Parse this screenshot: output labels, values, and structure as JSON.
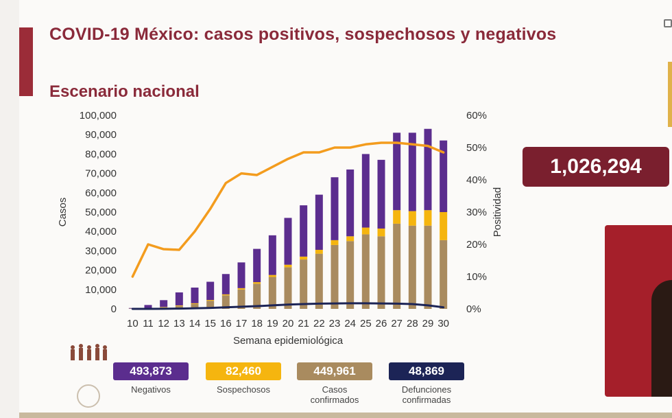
{
  "header": {
    "title": "COVID-19 México: casos positivos, sospechosos y negativos",
    "subtitle": "Escenario nacional"
  },
  "total_badge": "1,026,294",
  "stats": [
    {
      "value": "493,873",
      "label": "Negativos",
      "color": "#5b2d8e"
    },
    {
      "value": "82,460",
      "label": "Sospechosos",
      "color": "#f5b50f"
    },
    {
      "value": "449,961",
      "label": "Casos confirmados",
      "color": "#a98b5f"
    },
    {
      "value": "48,869",
      "label": "Defunciones confirmadas",
      "color": "#1c2456"
    }
  ],
  "chart_data": {
    "type": "bar",
    "stacked": true,
    "xlabel": "Semana epidemiológica",
    "ylabel": "Casos",
    "y2label": "Positividad",
    "ylim": [
      0,
      100000
    ],
    "y2lim": [
      0,
      60
    ],
    "yticks": [
      "0",
      "10,000",
      "20,000",
      "30,000",
      "40,000",
      "50,000",
      "60,000",
      "70,000",
      "80,000",
      "90,000",
      "100,000"
    ],
    "y2ticks": [
      "0%",
      "10%",
      "20%",
      "30%",
      "40%",
      "50%",
      "60%"
    ],
    "categories": [
      "10",
      "11",
      "12",
      "13",
      "14",
      "15",
      "16",
      "17",
      "18",
      "19",
      "20",
      "21",
      "22",
      "23",
      "24",
      "25",
      "26",
      "27",
      "28",
      "29",
      "30"
    ],
    "series": [
      {
        "key": "confirmados",
        "kind": "bar",
        "color": "#a98b5f",
        "values": [
          100,
          400,
          800,
          1500,
          2500,
          4200,
          7000,
          10000,
          13000,
          16500,
          21500,
          25500,
          28500,
          33000,
          35000,
          38500,
          37500,
          44000,
          43000,
          43000,
          35500
        ]
      },
      {
        "key": "sospechosos",
        "kind": "bar",
        "color": "#f5b50f",
        "values": [
          50,
          100,
          200,
          300,
          400,
          400,
          500,
          700,
          800,
          1000,
          1300,
          1500,
          2000,
          2500,
          2500,
          3500,
          4000,
          7000,
          7500,
          8000,
          14500
        ]
      },
      {
        "key": "negativos",
        "kind": "bar",
        "color": "#5b2d8e",
        "values": [
          300,
          1500,
          3500,
          6700,
          8100,
          9400,
          10500,
          13300,
          17200,
          20500,
          24200,
          26500,
          28500,
          32500,
          34500,
          38000,
          35500,
          40000,
          40500,
          42000,
          37000
        ]
      },
      {
        "key": "defunciones",
        "kind": "line",
        "color": "#1c2456",
        "values": [
          0,
          20,
          60,
          150,
          300,
          500,
          800,
          1100,
          1400,
          1800,
          2200,
          2500,
          2700,
          2800,
          2900,
          2900,
          2800,
          2700,
          2500,
          1800,
          800
        ]
      },
      {
        "key": "positividad",
        "kind": "line",
        "axis": "y2",
        "color": "#f39c1e",
        "values": [
          10,
          20,
          18.5,
          18.3,
          24,
          31,
          39,
          42,
          41.5,
          44,
          46.5,
          48.5,
          48.5,
          50,
          50,
          51,
          51.5,
          51.5,
          51,
          50.5,
          48.5
        ]
      }
    ]
  }
}
